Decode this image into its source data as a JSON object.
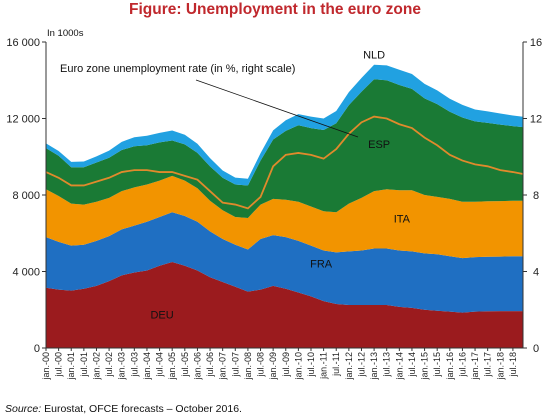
{
  "chart_data": {
    "type": "area",
    "title": "Figure: Unemployment in the euro zone",
    "title_color": "#c0282d",
    "left_unit_label": "In 1000s",
    "left_axis": {
      "range": [
        0,
        16000
      ],
      "ticks": [
        "0",
        "4 000",
        "8 000",
        "12 000",
        "16 000"
      ],
      "tick_values": [
        0,
        4000,
        8000,
        12000,
        16000
      ]
    },
    "right_axis": {
      "range": [
        0,
        16
      ],
      "ticks": [
        "0",
        "4",
        "8",
        "12",
        "16"
      ],
      "tick_values": [
        0,
        4,
        8,
        12,
        16
      ]
    },
    "x_tick_labels": [
      "jan.-00",
      "jul.-00",
      "jan.-01",
      "jul.-01",
      "jan.-02",
      "jul.-02",
      "jan.-03",
      "jul.-03",
      "jan.-04",
      "jul.-04",
      "jan.-05",
      "jul.-05",
      "jan.-06",
      "jul.-06",
      "jan.-07",
      "jul.-07",
      "jan.-08",
      "jul.-08",
      "jan.-09",
      "jul.-09",
      "jan.-10",
      "jul.-10",
      "jan.-11",
      "jul.-11",
      "jan.-12",
      "jul.-12",
      "jan.-13",
      "jul.-13",
      "jan.-14",
      "jul.-14",
      "jan.-15",
      "jul.-15",
      "jan.-16",
      "jul.-16",
      "jan.-17",
      "jul.-17",
      "jan.-18",
      "jul.-18"
    ],
    "x": [
      2000.0,
      2000.5,
      2001.0,
      2001.5,
      2002.0,
      2002.5,
      2003.0,
      2003.5,
      2004.0,
      2004.5,
      2005.0,
      2005.5,
      2006.0,
      2006.5,
      2007.0,
      2007.5,
      2008.0,
      2008.5,
      2009.0,
      2009.5,
      2010.0,
      2010.5,
      2011.0,
      2011.5,
      2012.0,
      2012.5,
      2013.0,
      2013.5,
      2014.0,
      2014.5,
      2015.0,
      2015.5,
      2016.0,
      2016.5,
      2017.0,
      2017.5,
      2018.0,
      2018.5,
      2018.9
    ],
    "series": [
      {
        "name": "DEU",
        "color": "#9b1b1e",
        "values": [
          3150,
          3050,
          3000,
          3100,
          3250,
          3500,
          3800,
          3950,
          4050,
          4300,
          4500,
          4300,
          4050,
          3700,
          3450,
          3200,
          2950,
          3050,
          3250,
          3100,
          2900,
          2700,
          2450,
          2300,
          2250,
          2250,
          2250,
          2250,
          2150,
          2100,
          2000,
          1950,
          1900,
          1850,
          1900,
          1920,
          1930,
          1930,
          1930
        ]
      },
      {
        "name": "FRA",
        "color": "#1f6fc2",
        "values": [
          2650,
          2500,
          2350,
          2300,
          2350,
          2350,
          2400,
          2450,
          2550,
          2550,
          2600,
          2600,
          2550,
          2400,
          2250,
          2200,
          2200,
          2650,
          2650,
          2700,
          2700,
          2650,
          2650,
          2700,
          2800,
          2850,
          2950,
          2950,
          2950,
          2950,
          2950,
          2950,
          2900,
          2850,
          2850,
          2850,
          2850,
          2870,
          2870
        ]
      },
      {
        "name": "ITA",
        "color": "#f29400",
        "values": [
          2500,
          2400,
          2200,
          2100,
          2050,
          2000,
          2000,
          2000,
          1950,
          1900,
          1900,
          1850,
          1750,
          1600,
          1500,
          1450,
          1650,
          1800,
          1900,
          1950,
          2050,
          2050,
          2050,
          2100,
          2500,
          2750,
          3000,
          3100,
          3150,
          3200,
          3050,
          3000,
          3000,
          2950,
          2900,
          2900,
          2900,
          2900,
          2900
        ]
      },
      {
        "name": "ESP",
        "color": "#1a7a35",
        "values": [
          2150,
          2100,
          1900,
          1950,
          2050,
          2100,
          2150,
          2150,
          2050,
          2000,
          1850,
          1900,
          1850,
          1800,
          1700,
          1700,
          1700,
          2300,
          3100,
          3600,
          4000,
          4100,
          4250,
          4650,
          5150,
          5550,
          5850,
          5700,
          5500,
          5300,
          5050,
          4850,
          4550,
          4400,
          4200,
          4100,
          4000,
          3900,
          3850
        ]
      },
      {
        "name": "NLD",
        "color": "#21a1e1",
        "values": [
          250,
          250,
          280,
          300,
          320,
          370,
          430,
          470,
          500,
          500,
          520,
          500,
          480,
          430,
          380,
          360,
          350,
          380,
          480,
          560,
          580,
          600,
          600,
          640,
          680,
          720,
          760,
          780,
          800,
          780,
          760,
          720,
          680,
          660,
          620,
          600,
          580,
          560,
          540
        ]
      }
    ],
    "rate_series": {
      "name": "Euro zone unemployment rate (in %, right scale)",
      "color": "#e08a2c",
      "values": [
        9.2,
        8.9,
        8.5,
        8.5,
        8.7,
        8.9,
        9.2,
        9.3,
        9.3,
        9.2,
        9.2,
        9.0,
        8.8,
        8.2,
        7.6,
        7.5,
        7.3,
        7.9,
        9.5,
        10.1,
        10.2,
        10.1,
        9.9,
        10.4,
        11.2,
        11.8,
        12.1,
        12.0,
        11.7,
        11.5,
        11.0,
        10.6,
        10.1,
        9.8,
        9.6,
        9.5,
        9.3,
        9.2,
        9.1
      ]
    },
    "annotation": "Euro zone unemployment rate (in %, right scale)",
    "grid": false,
    "source_label": "Source:",
    "source_text": "Eurostat, OFCE forecasts – October 2016."
  }
}
